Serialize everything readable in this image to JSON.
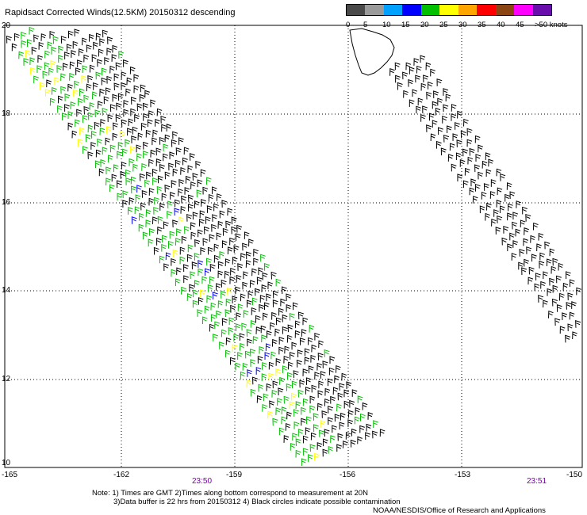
{
  "title": "Rapidsact Corrected Winds(12.5KM) 20150312 descending",
  "colorbar": {
    "labels": [
      "0",
      "5",
      "10",
      "15",
      "20",
      "25",
      "30",
      "35",
      "40",
      "45",
      ">50 knots"
    ],
    "colors": [
      "#4a4a4a",
      "#9a9a9a",
      "#00a0ff",
      "#0000ff",
      "#00c000",
      "#ffff00",
      "#ffa500",
      "#ff0000",
      "#8b4513",
      "#ff00ff",
      "#6a0dad"
    ]
  },
  "lat_labels": [
    "20",
    "18",
    "16",
    "14",
    "12",
    "10"
  ],
  "lon_labels": [
    "-165",
    "-162",
    "-159",
    "-156",
    "-153",
    "-150"
  ],
  "times": [
    "23:50",
    "23:51"
  ],
  "notes": [
    "Note: 1) Times are GMT 2)Times along bottom correspond to measurement at 20N",
    "3)Data buffer is 22 hrs from 20150312 4) Black circles indicate possible contamination"
  ],
  "credit": "NOAA/NESDIS/Office of Research and Applications"
}
